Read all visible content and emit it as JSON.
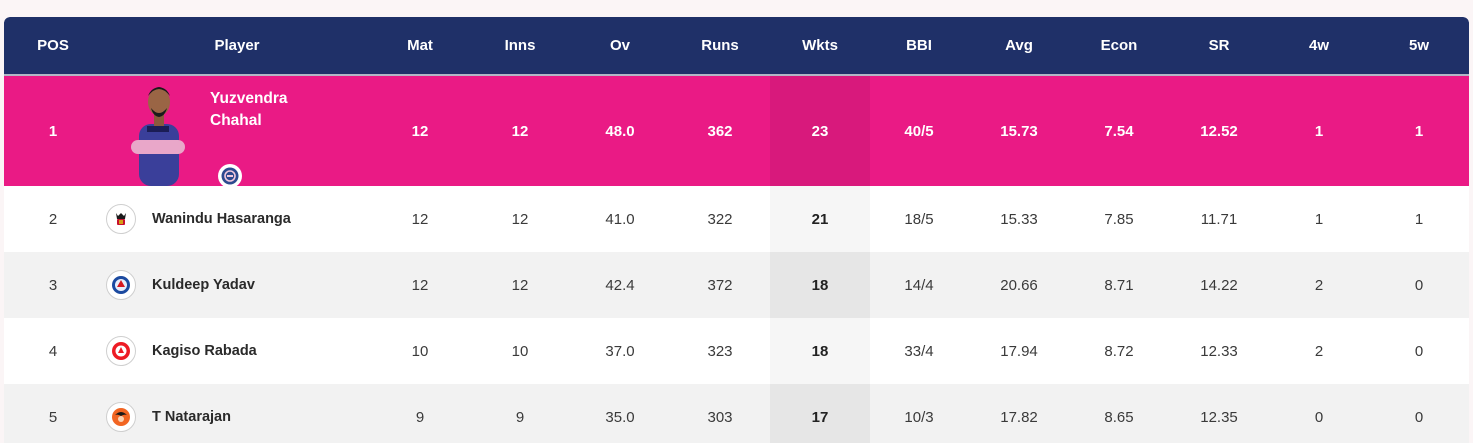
{
  "columns": [
    "POS",
    "Player",
    "Mat",
    "Inns",
    "Ov",
    "Runs",
    "Wkts",
    "BBI",
    "Avg",
    "Econ",
    "SR",
    "4w",
    "5w"
  ],
  "top_player": {
    "pos": "1",
    "name_line1": "Yuzvendra",
    "name_line2": "Chahal",
    "mat": "12",
    "inns": "12",
    "ov": "48.0",
    "runs": "362",
    "wkts": "23",
    "bbi": "40/5",
    "avg": "15.73",
    "econ": "7.54",
    "sr": "12.52",
    "fourw": "1",
    "fivew": "1",
    "team_icon": "rr-logo-icon"
  },
  "rows": [
    {
      "pos": "2",
      "name": "Wanindu Hasaranga",
      "team_icon": "rcb-logo-icon",
      "mat": "12",
      "inns": "12",
      "ov": "41.0",
      "runs": "322",
      "wkts": "21",
      "bbi": "18/5",
      "avg": "15.33",
      "econ": "7.85",
      "sr": "11.71",
      "fourw": "1",
      "fivew": "1"
    },
    {
      "pos": "3",
      "name": "Kuldeep Yadav",
      "team_icon": "dc-logo-icon",
      "mat": "12",
      "inns": "12",
      "ov": "42.4",
      "runs": "372",
      "wkts": "18",
      "bbi": "14/4",
      "avg": "20.66",
      "econ": "8.71",
      "sr": "14.22",
      "fourw": "2",
      "fivew": "0"
    },
    {
      "pos": "4",
      "name": "Kagiso Rabada",
      "team_icon": "pbks-logo-icon",
      "mat": "10",
      "inns": "10",
      "ov": "37.0",
      "runs": "323",
      "wkts": "18",
      "bbi": "33/4",
      "avg": "17.94",
      "econ": "8.72",
      "sr": "12.33",
      "fourw": "2",
      "fivew": "0"
    },
    {
      "pos": "5",
      "name": "T Natarajan",
      "team_icon": "srh-logo-icon",
      "mat": "9",
      "inns": "9",
      "ov": "35.0",
      "runs": "303",
      "wkts": "17",
      "bbi": "10/3",
      "avg": "17.82",
      "econ": "8.65",
      "sr": "12.35",
      "fourw": "0",
      "fivew": "0"
    }
  ],
  "colors": {
    "header_bg": "#1f3068",
    "top_row_bg": "#ea1a85",
    "alt_row_bg": "#f2f2f2"
  }
}
